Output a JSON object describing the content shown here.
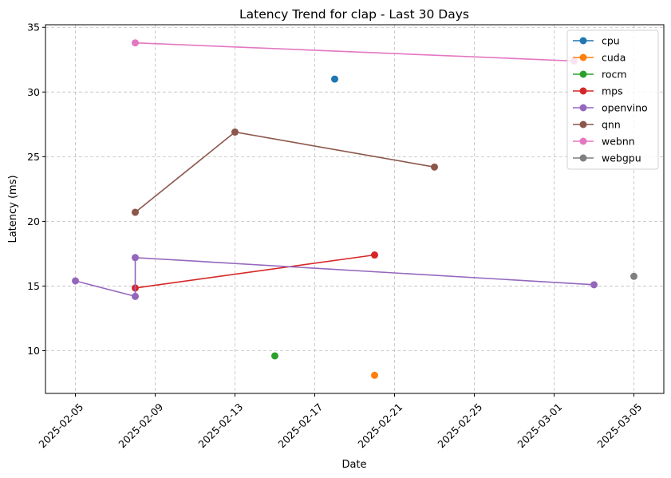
{
  "chart_data": {
    "type": "line",
    "title": "Latency Trend for clap - Last 30 Days",
    "xlabel": "Date",
    "ylabel": "Latency (ms)",
    "xlim": [
      "2025-02-03T12:00",
      "2025-03-06T12:00"
    ],
    "ylim": [
      6.7,
      35.2
    ],
    "x_ticks": [
      "2025-02-05",
      "2025-02-09",
      "2025-02-13",
      "2025-02-17",
      "2025-02-21",
      "2025-02-25",
      "2025-03-01",
      "2025-03-05"
    ],
    "y_ticks": [
      10,
      15,
      20,
      25,
      30,
      35
    ],
    "grid": true,
    "legend_position": "top-right",
    "series": [
      {
        "name": "cpu",
        "color": "#1f77b4",
        "points": [
          [
            "2025-02-18",
            31.0
          ]
        ]
      },
      {
        "name": "cuda",
        "color": "#ff7f0e",
        "points": [
          [
            "2025-02-20",
            8.1
          ]
        ]
      },
      {
        "name": "rocm",
        "color": "#2ca02c",
        "points": [
          [
            "2025-02-15",
            9.6
          ]
        ]
      },
      {
        "name": "mps",
        "color": "#d62728",
        "points": [
          [
            "2025-02-08",
            14.85
          ],
          [
            "2025-02-20",
            17.4
          ]
        ]
      },
      {
        "name": "openvino",
        "color": "#9467bd",
        "points": [
          [
            "2025-02-05",
            15.4
          ],
          [
            "2025-02-08",
            14.2
          ],
          [
            "2025-02-08",
            17.2
          ],
          [
            "2025-03-03",
            15.1
          ]
        ]
      },
      {
        "name": "qnn",
        "color": "#8c564b",
        "points": [
          [
            "2025-02-08",
            20.7
          ],
          [
            "2025-02-13",
            26.9
          ],
          [
            "2025-02-23",
            24.2
          ]
        ]
      },
      {
        "name": "webnn",
        "color": "#e377c2",
        "points": [
          [
            "2025-02-08",
            33.8
          ],
          [
            "2025-03-02",
            32.4
          ]
        ]
      },
      {
        "name": "webgpu",
        "color": "#7f7f7f",
        "points": [
          [
            "2025-03-05",
            15.75
          ]
        ]
      }
    ]
  }
}
